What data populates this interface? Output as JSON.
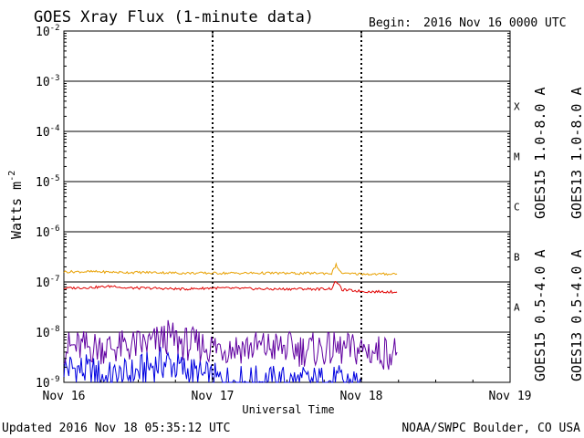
{
  "header": {
    "title": "GOES Xray Flux (1-minute data)",
    "begin_label": "Begin:",
    "begin_value": "2016 Nov 16 0000 UTC"
  },
  "footer": {
    "updated": "Updated 2016 Nov 18 05:35:12 UTC",
    "credit": "NOAA/SWPC Boulder, CO USA"
  },
  "colors": {
    "goes15_long": "#e00000",
    "goes13_long": "#e8a000",
    "goes15_short": "#0000e0",
    "goes13_short": "#6000a0"
  },
  "chart_data": {
    "type": "line",
    "title": "GOES Xray Flux (1-minute data)",
    "xlabel": "Universal Time",
    "ylabel": "Watts m",
    "ylabel_superscript": "-2",
    "yscale": "log",
    "ylim": [
      1e-09,
      0.01
    ],
    "xlim_days": [
      0,
      3
    ],
    "x_tick_labels": [
      "Nov 16",
      "Nov 17",
      "Nov 18",
      "Nov 19"
    ],
    "y_tick_labels": [
      {
        "base": "10",
        "exp": "-9",
        "value": 1e-09
      },
      {
        "base": "10",
        "exp": "-8",
        "value": 1e-08
      },
      {
        "base": "10",
        "exp": "-7",
        "value": 1e-07
      },
      {
        "base": "10",
        "exp": "-6",
        "value": 1e-06
      },
      {
        "base": "10",
        "exp": "-5",
        "value": 1e-05
      },
      {
        "base": "10",
        "exp": "-4",
        "value": 0.0001
      },
      {
        "base": "10",
        "exp": "-3",
        "value": 0.001
      },
      {
        "base": "10",
        "exp": "-2",
        "value": 0.01
      }
    ],
    "flare_classes": [
      {
        "label": "A",
        "from": 1e-08,
        "to": 1e-07
      },
      {
        "label": "B",
        "from": 1e-07,
        "to": 1e-06
      },
      {
        "label": "C",
        "from": 1e-06,
        "to": 1e-05
      },
      {
        "label": "M",
        "from": 1e-05,
        "to": 0.0001
      },
      {
        "label": "X",
        "from": 0.0001,
        "to": 0.001
      }
    ],
    "legend": [
      {
        "label": "GOES15 1.0-8.0 A",
        "color": "#e00000"
      },
      {
        "label": "GOES13 1.0-8.0 A",
        "color": "#e8a000"
      },
      {
        "label": "GOES15 0.5-4.0 A",
        "color": "#0000e0"
      },
      {
        "label": "GOES13 0.5-4.0 A",
        "color": "#6000a0"
      }
    ],
    "series": [
      {
        "name": "GOES13 1.0-8.0 A",
        "color": "#e8a000",
        "x": [
          0.0,
          0.2,
          0.4,
          0.6,
          0.8,
          1.0,
          1.2,
          1.4,
          1.6,
          1.7,
          1.8,
          1.83,
          1.86,
          1.9,
          2.0,
          2.1,
          2.2,
          2.24
        ],
        "y": [
          1.6e-07,
          1.6e-07,
          1.55e-07,
          1.55e-07,
          1.5e-07,
          1.5e-07,
          1.5e-07,
          1.5e-07,
          1.48e-07,
          1.5e-07,
          1.48e-07,
          2.2e-07,
          1.55e-07,
          1.45e-07,
          1.45e-07,
          1.42e-07,
          1.45e-07,
          1.45e-07
        ]
      },
      {
        "name": "GOES15 1.0-8.0 A",
        "color": "#e00000",
        "x": [
          0.0,
          0.2,
          0.35,
          0.4,
          0.6,
          0.8,
          1.0,
          1.2,
          1.4,
          1.6,
          1.7,
          1.8,
          1.83,
          1.87,
          1.95,
          2.05,
          2.15,
          2.24
        ],
        "y": [
          7.5e-08,
          7.8e-08,
          8.3e-08,
          7.6e-08,
          7.5e-08,
          7.2e-08,
          7.6e-08,
          7.4e-08,
          7.2e-08,
          7.3e-08,
          7.2e-08,
          7.4e-08,
          1.05e-07,
          7e-08,
          6.7e-08,
          6.4e-08,
          6.4e-08,
          6.3e-08
        ]
      },
      {
        "name": "GOES13 0.5-4.0 A",
        "color": "#6000a0",
        "x": [
          0.0,
          0.2,
          0.4,
          0.6,
          0.7,
          0.8,
          0.9,
          1.0,
          1.2,
          1.4,
          1.6,
          1.8,
          2.0,
          2.1,
          2.2,
          2.24
        ],
        "y": [
          5e-09,
          5e-09,
          5e-09,
          6e-09,
          8e-09,
          6e-09,
          5.5e-09,
          5e-09,
          5e-09,
          5e-09,
          4.5e-09,
          4.5e-09,
          4.5e-09,
          4e-09,
          4e-09,
          4e-09
        ]
      },
      {
        "name": "GOES15 0.5-4.0 A",
        "color": "#0000e0",
        "x": [
          0.0,
          0.1,
          0.2,
          0.3,
          0.4,
          0.5,
          0.6,
          0.7,
          0.8,
          0.9,
          1.0,
          1.2,
          1.4,
          1.6,
          1.8,
          2.0
        ],
        "y": [
          2e-09,
          1.8e-09,
          1.5e-09,
          1.2e-09,
          1.3e-09,
          1.6e-09,
          2.2e-09,
          2.5e-09,
          1.8e-09,
          1.4e-09,
          1.1e-09,
          1e-09,
          1e-09,
          1e-09,
          1e-09,
          1e-09
        ]
      }
    ]
  }
}
